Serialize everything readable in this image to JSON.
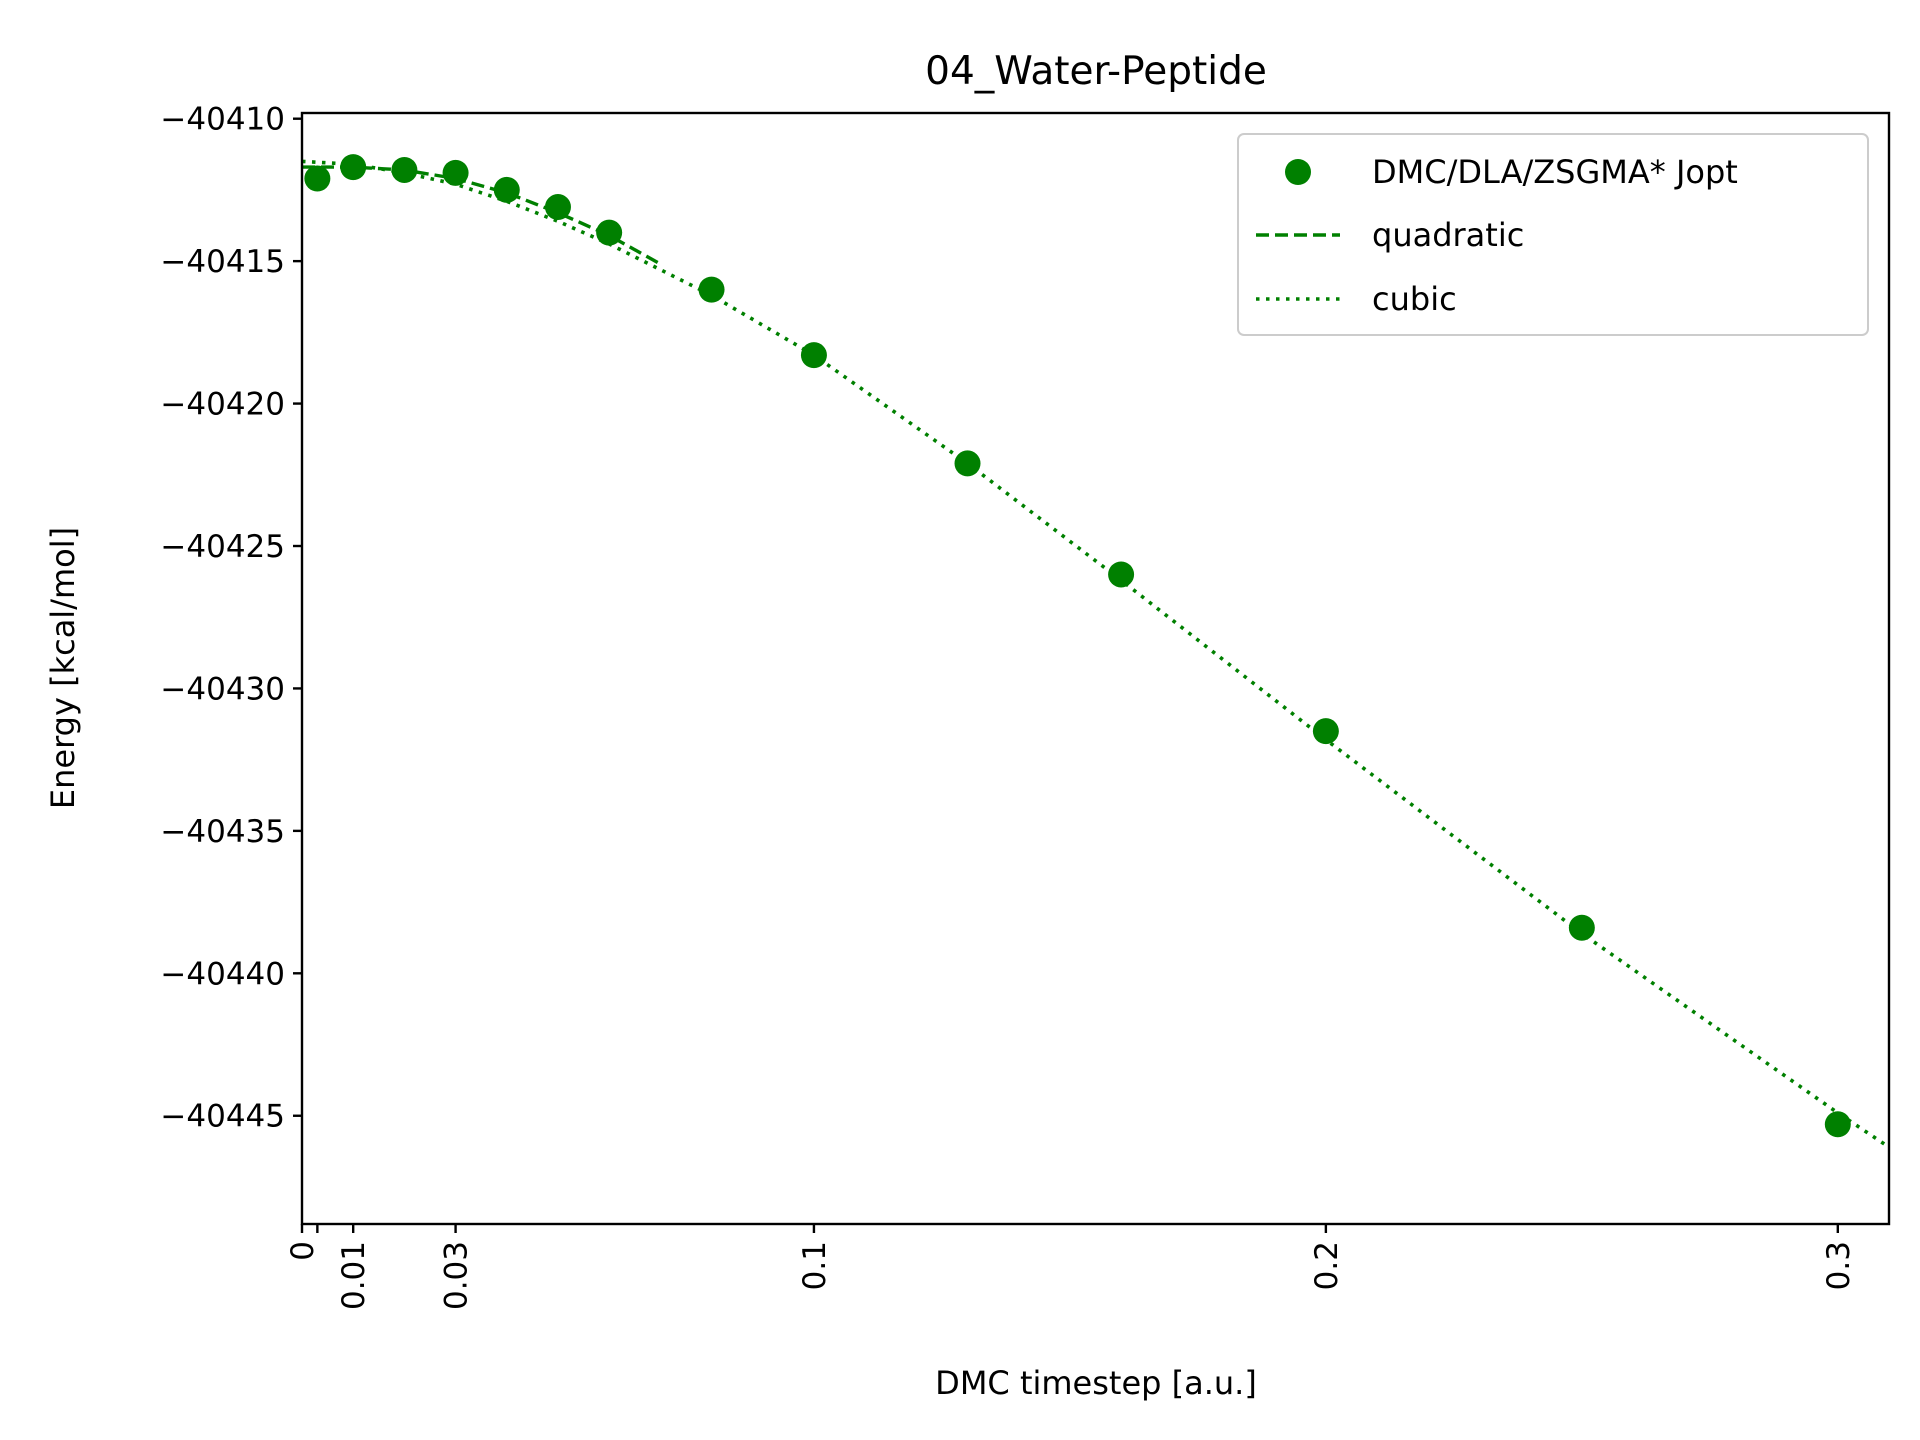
{
  "chart_data": {
    "type": "scatter",
    "title": "04_Water-Peptide",
    "xlabel": "DMC timestep [a.u.]",
    "ylabel": "Energy [kcal/mol]",
    "xlim": [
      0,
      0.31
    ],
    "ylim": [
      -40448.8,
      -40409.8
    ],
    "x_ticks": [
      0,
      0.003,
      0.01,
      0.03,
      0.1,
      0.2,
      0.3
    ],
    "x_tick_labels": [
      "0",
      "",
      "0.01",
      "0.03",
      "0.1",
      "0.2",
      "0.3"
    ],
    "y_ticks": [
      -40410,
      -40415,
      -40420,
      -40425,
      -40430,
      -40435,
      -40440,
      -40445
    ],
    "y_tick_labels": [
      "−40410",
      "−40415",
      "−40420",
      "−40425",
      "−40430",
      "−40435",
      "−40440",
      "−40445"
    ],
    "grid": false,
    "legend_position": "top-right",
    "series": [
      {
        "name": "DMC/DLA/ZSGMA* Jopt",
        "style": "markers",
        "color": "#008000",
        "x": [
          0.003,
          0.01,
          0.02,
          0.03,
          0.04,
          0.05,
          0.06,
          0.08,
          0.1,
          0.13,
          0.16,
          0.2,
          0.25,
          0.3
        ],
        "y": [
          -40412.1,
          -40411.7,
          -40411.8,
          -40411.9,
          -40412.5,
          -40413.1,
          -40414.0,
          -40416.0,
          -40418.3,
          -40422.1,
          -40426.0,
          -40431.5,
          -40438.4,
          -40445.3
        ]
      },
      {
        "name": "quadratic",
        "style": "dashed",
        "color": "#008000",
        "x": [
          0,
          0.003,
          0.01,
          0.02,
          0.03,
          0.04,
          0.05,
          0.06,
          0.07
        ],
        "y": [
          -40411.7,
          -40411.7,
          -40411.7,
          -40411.8,
          -40412.1,
          -40412.6,
          -40413.3,
          -40414.1,
          -40415.1
        ]
      },
      {
        "name": "cubic",
        "style": "dotted",
        "color": "#008000",
        "x": [
          0,
          0.01,
          0.02,
          0.03,
          0.04,
          0.05,
          0.06,
          0.08,
          0.1,
          0.13,
          0.16,
          0.2,
          0.25,
          0.3,
          0.31
        ],
        "y": [
          -40411.5,
          -40411.6,
          -40411.9,
          -40412.3,
          -40412.9,
          -40413.6,
          -40414.4,
          -40416.2,
          -40418.3,
          -40422.1,
          -40426.2,
          -40431.8,
          -40438.6,
          -40444.9,
          -40446.1
        ]
      }
    ]
  }
}
